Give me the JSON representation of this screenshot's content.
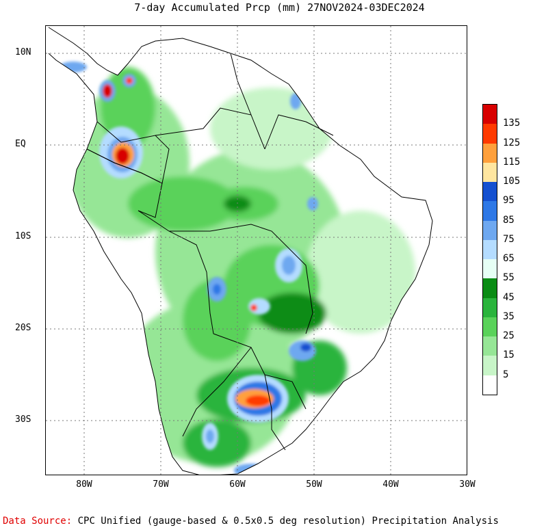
{
  "title": "7-day Accumulated Prcp (mm) 27NOV2024-03DEC2024",
  "axes": {
    "lat_labels": [
      "10N",
      "EQ",
      "10S",
      "20S",
      "30S"
    ],
    "lon_labels": [
      "80W",
      "70W",
      "60W",
      "50W",
      "40W",
      "30W"
    ]
  },
  "legend": {
    "labels": [
      "135",
      "125",
      "115",
      "105",
      "95",
      "85",
      "75",
      "65",
      "55",
      "45",
      "35",
      "25",
      "15",
      "5"
    ],
    "colors": [
      "#d80000",
      "#ff3a00",
      "#ffa03c",
      "#ffe6a0",
      "#1450d0",
      "#2e78e6",
      "#6ea8f0",
      "#b4dcff",
      "#e6fff5",
      "#0a8c14",
      "#2ab43c",
      "#5ad25a",
      "#96e696",
      "#c8f5c8",
      "#ffffff"
    ]
  },
  "footer": {
    "source_label": "Data Source:",
    "source_text": "CPC Unified (gauge-based & 0.5x0.5 deg resolution) Precipitation Analysis"
  },
  "map": {
    "region": "South America",
    "lon_range": [
      -85,
      -30
    ],
    "lat_range": [
      -36,
      13
    ]
  }
}
